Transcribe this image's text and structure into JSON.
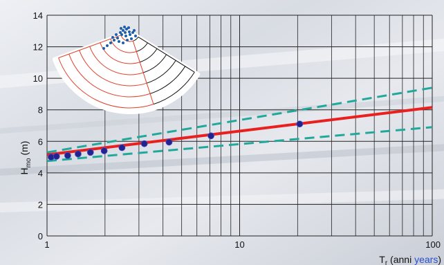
{
  "chart_data": {
    "type": "scatter",
    "x_scale": "log",
    "xlim": [
      1,
      100
    ],
    "ylim": [
      0,
      14
    ],
    "grid": true,
    "x_ticks": [
      {
        "value": 1,
        "label": "1"
      },
      {
        "value": 10,
        "label": "10"
      },
      {
        "value": 100,
        "label": "100"
      }
    ],
    "y_ticks": [
      0,
      2,
      4,
      6,
      8,
      10,
      12,
      14
    ],
    "ylabel": {
      "main": "H",
      "sub": "mo",
      "unit": " (m)"
    },
    "xlabel": {
      "main": "T",
      "sub": "r",
      "open": " (anni ",
      "blue": "years",
      "close": ")"
    },
    "observations": {
      "x": [
        1.05,
        1.12,
        1.28,
        1.45,
        1.68,
        1.98,
        2.45,
        3.2,
        4.3,
        7.1,
        20.5
      ],
      "y": [
        5.0,
        5.05,
        5.1,
        5.2,
        5.3,
        5.4,
        5.6,
        5.85,
        5.95,
        6.35,
        7.1
      ]
    },
    "fit": {
      "x": [
        1,
        100
      ],
      "y": [
        5.15,
        8.15
      ]
    },
    "upper_bound": {
      "x": [
        1,
        100
      ],
      "y": [
        5.3,
        9.4
      ]
    },
    "lower_bound": {
      "x": [
        1,
        100
      ],
      "y": [
        4.75,
        6.9
      ]
    },
    "colors": {
      "fit": "#e8201f",
      "bounds": "#22a89a",
      "points": "#23238e",
      "grid": "#222222"
    }
  },
  "inset": {
    "name": "wave-rose-sector-icon"
  }
}
